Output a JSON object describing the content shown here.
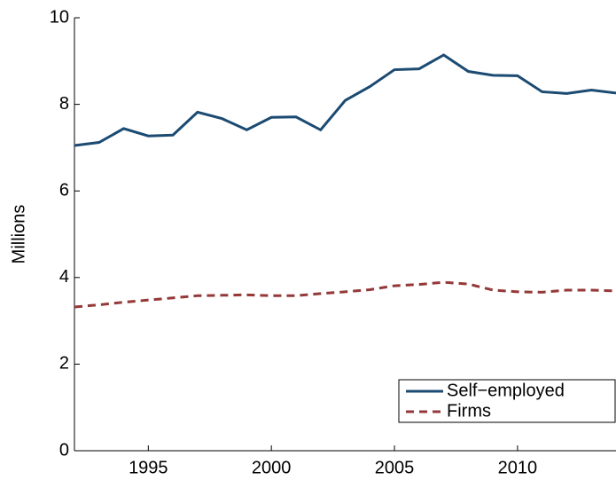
{
  "chart_data": {
    "type": "line",
    "y_label": "Millions",
    "x": [
      1992,
      1993,
      1994,
      1995,
      1996,
      1997,
      1998,
      1999,
      2000,
      2001,
      2002,
      2003,
      2004,
      2005,
      2006,
      2007,
      2008,
      2009,
      2010,
      2011,
      2012,
      2013,
      2014
    ],
    "series": [
      {
        "name": "Self−employed",
        "color": "#1b4a72",
        "dash": "solid",
        "values": [
          7.05,
          7.12,
          7.44,
          7.27,
          7.29,
          7.82,
          7.67,
          7.41,
          7.7,
          7.71,
          7.41,
          8.09,
          8.41,
          8.8,
          8.82,
          9.14,
          8.76,
          8.67,
          8.66,
          8.29,
          8.25,
          8.33,
          8.26
        ]
      },
      {
        "name": "Firms",
        "color": "#943838",
        "dash": "dashed",
        "values": [
          3.32,
          3.37,
          3.43,
          3.48,
          3.53,
          3.58,
          3.59,
          3.6,
          3.58,
          3.58,
          3.63,
          3.67,
          3.72,
          3.81,
          3.84,
          3.89,
          3.85,
          3.71,
          3.67,
          3.66,
          3.71,
          3.71,
          3.69
        ]
      }
    ],
    "xlim": [
      1992,
      2014
    ],
    "xticks": [
      1995,
      2000,
      2005,
      2010
    ],
    "ylim": [
      0,
      10
    ],
    "yticks": [
      0,
      2,
      4,
      6,
      8,
      10
    ],
    "legend": "lower right"
  }
}
